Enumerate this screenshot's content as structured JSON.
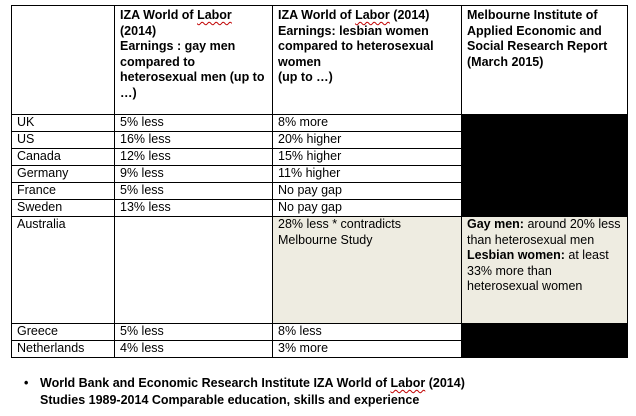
{
  "header": {
    "col1": {
      "line1_a": "IZA World of ",
      "line1_b": "Labor",
      "line1_c": " (2014)",
      "line2": "Earnings : gay men compared to heterosexual men (up to …)"
    },
    "col2": {
      "line1_a": "IZA World of ",
      "line1_b": "Labor",
      "line1_c": " (2014)",
      "line2": "Earnings: lesbian women compared to heterosexual women",
      "line3": "(up to …)"
    },
    "col3": "Melbourne Institute of Applied Economic and Social Research Report (March 2015)"
  },
  "rows": [
    {
      "country": "UK",
      "gay": "5% less",
      "lesbian": "8% more"
    },
    {
      "country": "US",
      "gay": "16% less",
      "lesbian": "20% higher"
    },
    {
      "country": "Canada",
      "gay": "12% less",
      "lesbian": "15% higher"
    },
    {
      "country": "Germany",
      "gay": "9% less",
      "lesbian": "11% higher"
    },
    {
      "country": "France",
      "gay": "5% less",
      "lesbian": "No pay gap"
    },
    {
      "country": "Sweden",
      "gay": "13% less",
      "lesbian": "No pay gap"
    },
    {
      "country": "Australia",
      "gay": "",
      "lesbian": "28% less * contradicts Melbourne Study",
      "melbourne": {
        "gay_label": "Gay men:",
        "gay_text": " around 20% less than heterosexual men",
        "lesbian_label": "Lesbian women:",
        "lesbian_text": " at least 33% more than heterosexual women"
      }
    },
    {
      "country": "Greece",
      "gay": "5% less",
      "lesbian": "8% less"
    },
    {
      "country": "Netherlands",
      "gay": "4% less",
      "lesbian": "3% more"
    }
  ],
  "footnote": {
    "bullet": "•",
    "line1_a": "World Bank and Economic Research Institute IZA World of ",
    "line1_b": "Labor",
    "line1_c": " (2014)",
    "line2": "Studies 1989-2014  Comparable education, skills and experience"
  }
}
